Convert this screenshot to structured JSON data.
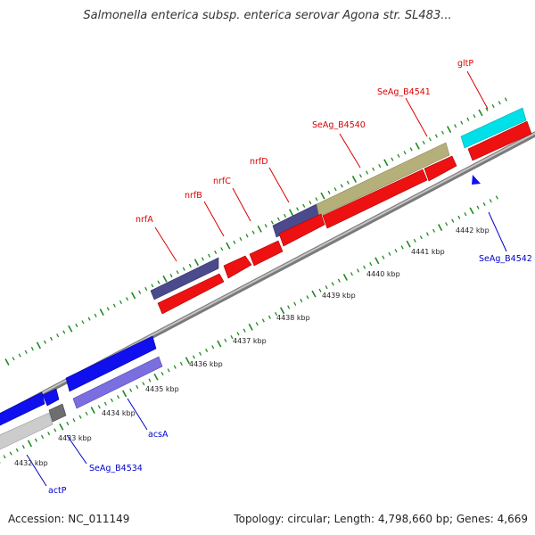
{
  "title": "Salmonella enterica subsp. enterica serovar Agona str. SL483...",
  "footer": {
    "accession": "Accession: NC_011149",
    "topology": "Topology: circular; Length: 4,798,660 bp; Genes: 4,669"
  },
  "colors": {
    "forward_label": "#dd0000",
    "reverse_label": "#0000cc",
    "tick": "#1e8a1e",
    "backbone": "#8c8c8c"
  },
  "ticks": [
    "4432 kbp",
    "4433 kbp",
    "4434 kbp",
    "4435 kbp",
    "4436 kbp",
    "4437 kbp",
    "4438 kbp",
    "4439 kbp",
    "4440 kbp",
    "4441 kbp",
    "4442 kbp"
  ],
  "forward_genes": [
    "nrfA",
    "nrfB",
    "nrfC",
    "nrfD",
    "SeAg_B4540",
    "SeAg_B4541",
    "gltP"
  ],
  "reverse_genes": [
    "actP",
    "SeAg_B4534",
    "acsA",
    "SeAg_B4542"
  ]
}
